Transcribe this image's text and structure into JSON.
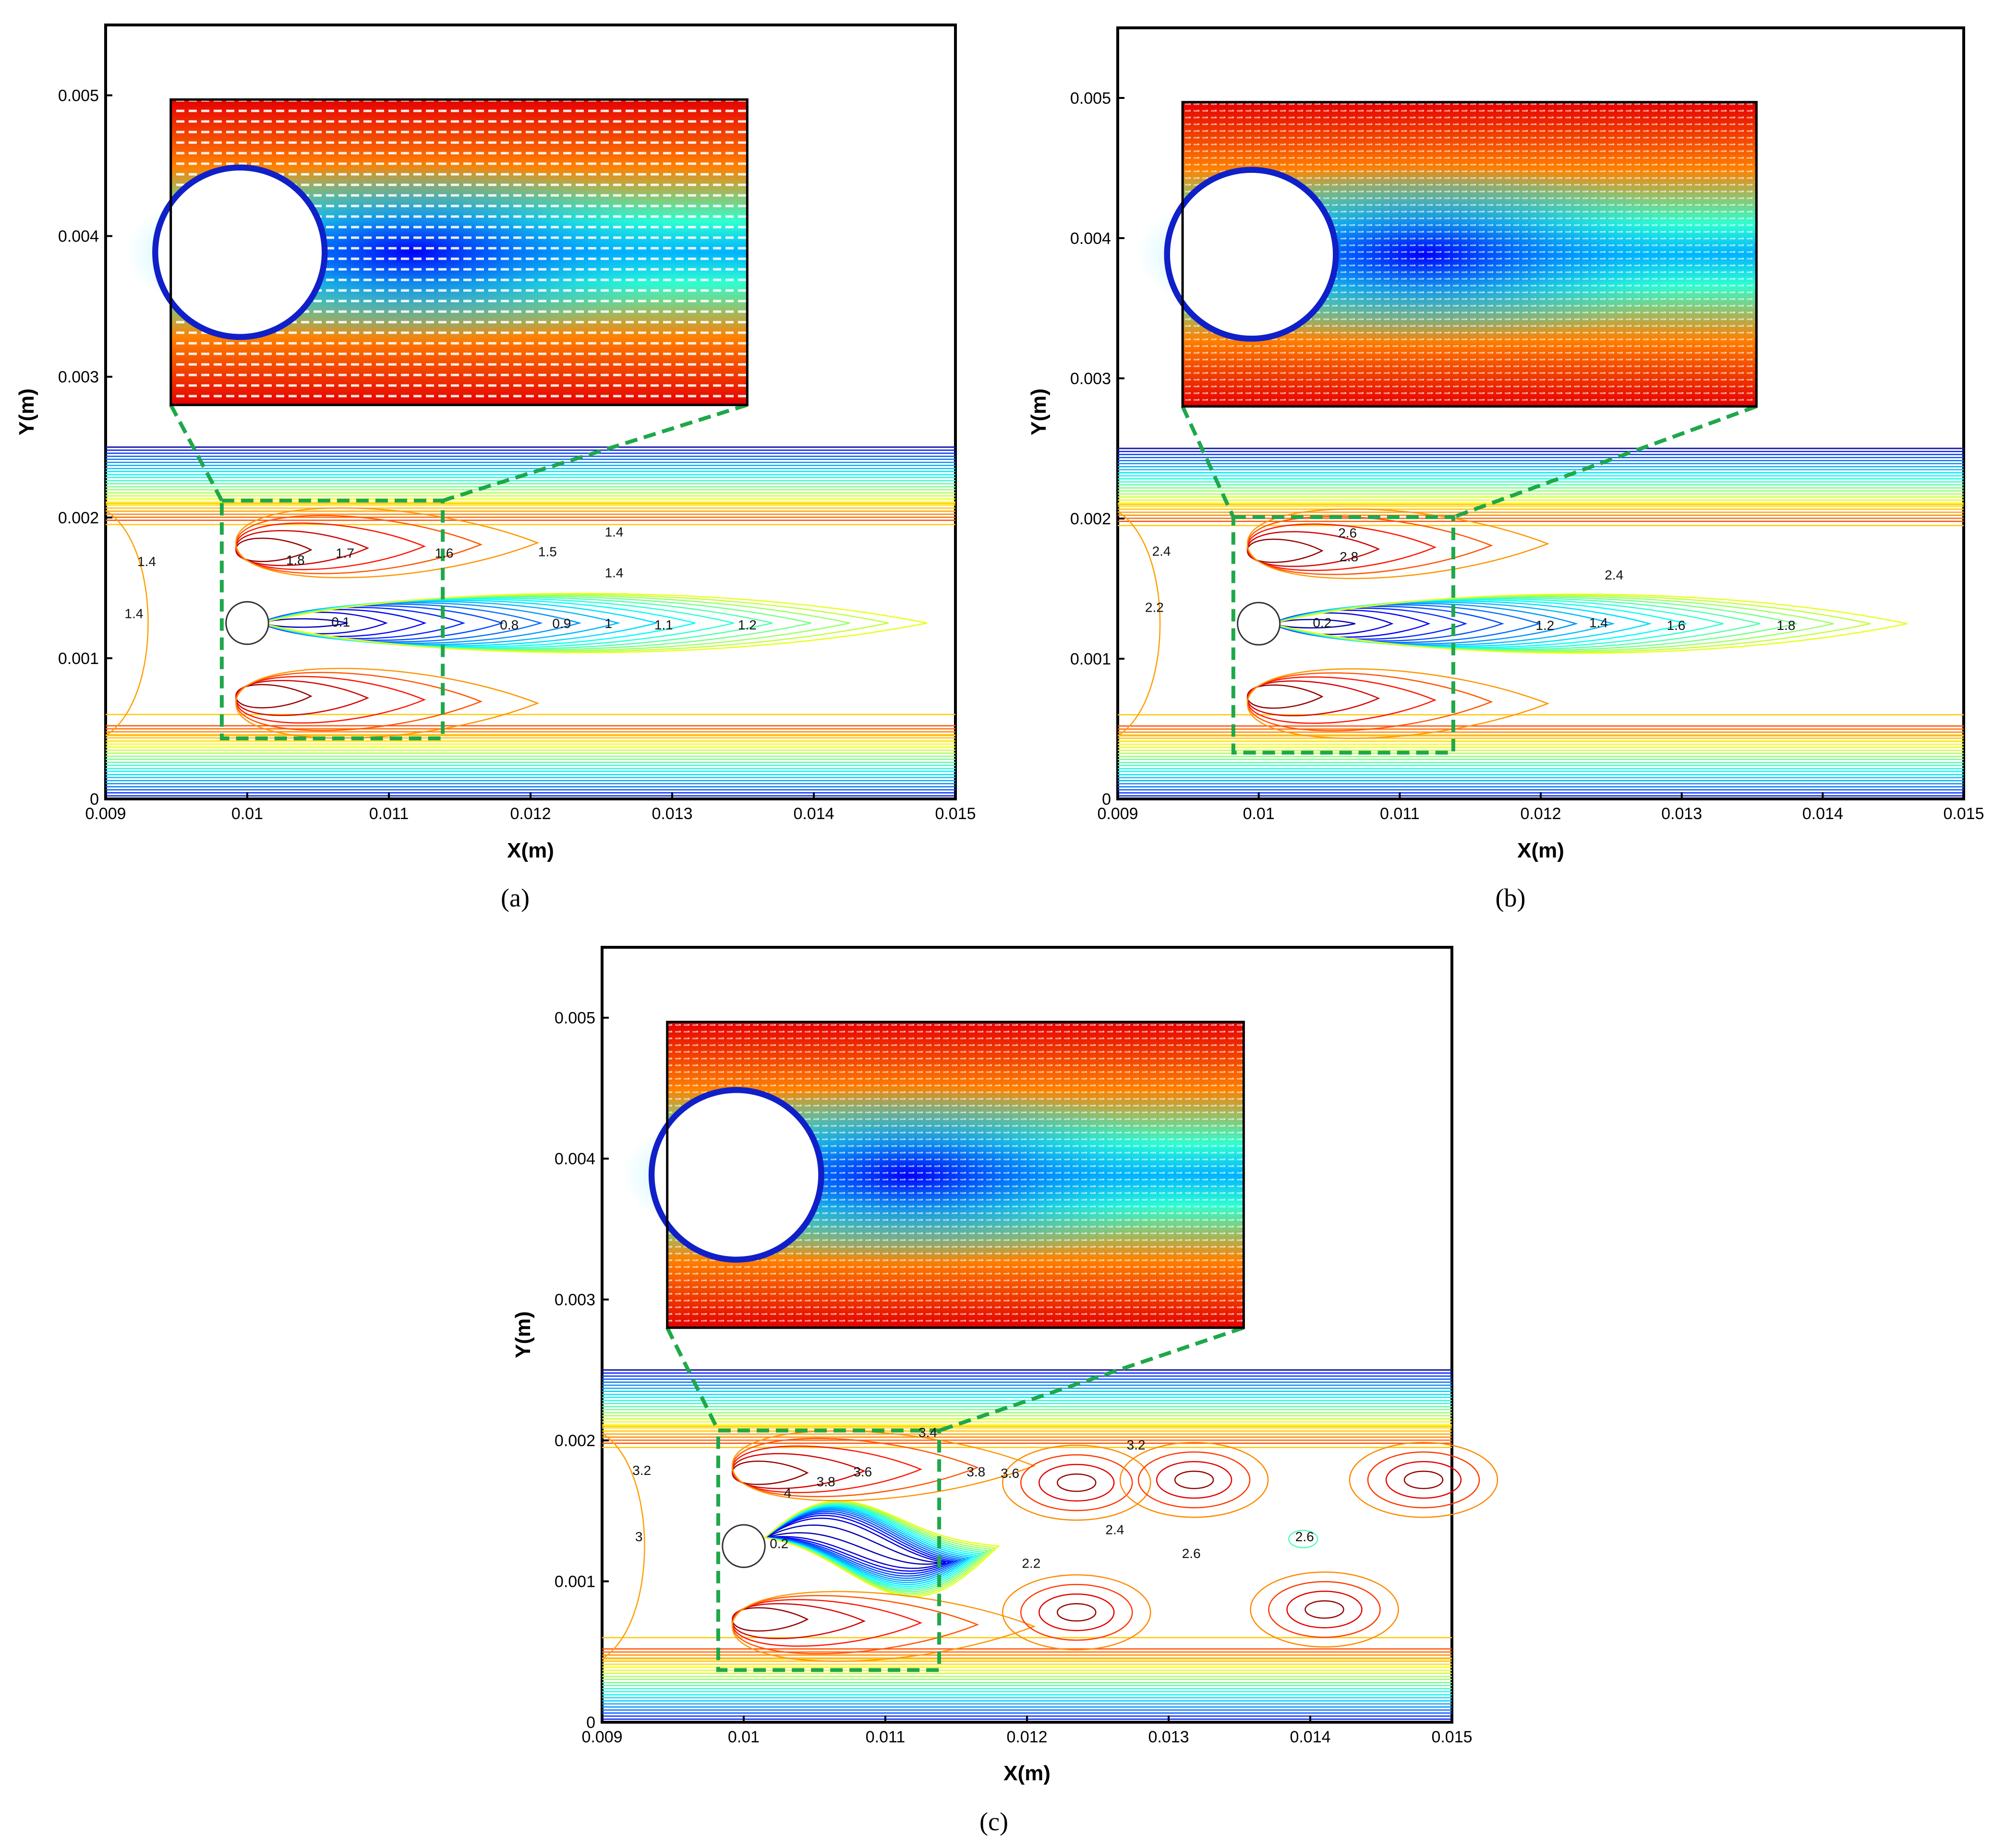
{
  "chart_data": [
    {
      "panel": "(a)",
      "type": "contour",
      "xlabel": "X(m)",
      "ylabel": "Y(m)",
      "xlim": [
        0.009,
        0.015
      ],
      "ylim": [
        0,
        0.0055
      ],
      "xticks": [
        "0.009",
        "0.01",
        "0.011",
        "0.012",
        "0.013",
        "0.014",
        "0.015"
      ],
      "yticks": [
        "0",
        "0.001",
        "0.002",
        "0.003",
        "0.004",
        "0.005"
      ],
      "channel_top": 0.0025,
      "cylinder": {
        "x": 0.01,
        "y": 0.00125,
        "r": 0.00015
      },
      "zoom_box": {
        "x": [
          0.00982,
          0.01138
        ],
        "y": [
          0.00043,
          0.00212
        ]
      },
      "inset": {
        "x": [
          0.00946,
          0.01353
        ],
        "y": [
          0.0028,
          0.00497
        ],
        "style": "vector-field"
      },
      "contour_labels": [
        {
          "text": "1.4",
          "x": 0.00929,
          "y": 0.00168
        },
        {
          "text": "1.4",
          "x": 0.0092,
          "y": 0.00131
        },
        {
          "text": "1.8",
          "x": 0.01034,
          "y": 0.00169
        },
        {
          "text": "1.7",
          "x": 0.01069,
          "y": 0.00174
        },
        {
          "text": "1.6",
          "x": 0.01139,
          "y": 0.00174
        },
        {
          "text": "1.4",
          "x": 0.01259,
          "y": 0.00189
        },
        {
          "text": "1.5",
          "x": 0.01212,
          "y": 0.00175
        },
        {
          "text": "1.4",
          "x": 0.01259,
          "y": 0.0016
        },
        {
          "text": "0.1",
          "x": 0.01066,
          "y": 0.00125
        },
        {
          "text": "0.8",
          "x": 0.01185,
          "y": 0.00123
        },
        {
          "text": "0.9",
          "x": 0.01222,
          "y": 0.00124
        },
        {
          "text": "1",
          "x": 0.01255,
          "y": 0.00124
        },
        {
          "text": "1.1",
          "x": 0.01294,
          "y": 0.00123
        },
        {
          "text": "1.2",
          "x": 0.01353,
          "y": 0.00123
        }
      ],
      "field": {
        "wake_length": 0.0048,
        "wake_min": 0.1,
        "outer": 1.4
      }
    },
    {
      "panel": "(b)",
      "type": "contour",
      "xlabel": "X(m)",
      "ylabel": "Y(m)",
      "xlim": [
        0.009,
        0.015
      ],
      "ylim": [
        0,
        0.0055
      ],
      "xticks": [
        "0.009",
        "0.01",
        "0.011",
        "0.012",
        "0.013",
        "0.014",
        "0.015"
      ],
      "yticks": [
        "0",
        "0.001",
        "0.002",
        "0.003",
        "0.004",
        "0.005"
      ],
      "channel_top": 0.0025,
      "cylinder": {
        "x": 0.01,
        "y": 0.00125,
        "r": 0.00015
      },
      "zoom_box": {
        "x": [
          0.00982,
          0.01138
        ],
        "y": [
          0.00033,
          0.00201
        ]
      },
      "inset": {
        "x": [
          0.00946,
          0.01353
        ],
        "y": [
          0.0028,
          0.00497
        ],
        "style": "vector-field"
      },
      "contour_labels": [
        {
          "text": "2.4",
          "x": 0.00931,
          "y": 0.00176
        },
        {
          "text": "2.2",
          "x": 0.00926,
          "y": 0.00136
        },
        {
          "text": "2.6",
          "x": 0.01063,
          "y": 0.00189
        },
        {
          "text": "2.8",
          "x": 0.01064,
          "y": 0.00172
        },
        {
          "text": "2.4",
          "x": 0.01252,
          "y": 0.00159
        },
        {
          "text": "0.2",
          "x": 0.01045,
          "y": 0.00125
        },
        {
          "text": "1.2",
          "x": 0.01203,
          "y": 0.00123
        },
        {
          "text": "1.4",
          "x": 0.01241,
          "y": 0.00125
        },
        {
          "text": "1.6",
          "x": 0.01296,
          "y": 0.00123
        },
        {
          "text": "1.8",
          "x": 0.01374,
          "y": 0.00123
        }
      ],
      "field": {
        "wake_length": 0.0046,
        "wake_min": 0.2,
        "outer": 2.4
      }
    },
    {
      "panel": "(c)",
      "type": "contour",
      "xlabel": "X(m)",
      "ylabel": "Y(m)",
      "xlim": [
        0.009,
        0.015
      ],
      "ylim": [
        0,
        0.0055
      ],
      "xticks": [
        "0.009",
        "0.01",
        "0.011",
        "0.012",
        "0.013",
        "0.014",
        "0.015"
      ],
      "yticks": [
        "0",
        "0.001",
        "0.002",
        "0.003",
        "0.004",
        "0.005"
      ],
      "channel_top": 0.0025,
      "cylinder": {
        "x": 0.01,
        "y": 0.00125,
        "r": 0.00015
      },
      "zoom_box": {
        "x": [
          0.00982,
          0.01138
        ],
        "y": [
          0.00037,
          0.00207
        ]
      },
      "inset": {
        "x": [
          0.00946,
          0.01353
        ],
        "y": [
          0.0028,
          0.00497
        ],
        "style": "vector-field"
      },
      "contour_labels": [
        {
          "text": "3.2",
          "x": 0.00928,
          "y": 0.00178
        },
        {
          "text": "3",
          "x": 0.00926,
          "y": 0.00131
        },
        {
          "text": "4",
          "x": 0.01031,
          "y": 0.00162
        },
        {
          "text": "3.8",
          "x": 0.01058,
          "y": 0.0017
        },
        {
          "text": "3.6",
          "x": 0.01084,
          "y": 0.00177
        },
        {
          "text": "3.4",
          "x": 0.0113,
          "y": 0.00205
        },
        {
          "text": "3.8",
          "x": 0.01164,
          "y": 0.00177
        },
        {
          "text": "3.6",
          "x": 0.01188,
          "y": 0.00176
        },
        {
          "text": "3.2",
          "x": 0.01277,
          "y": 0.00196
        },
        {
          "text": "0.2",
          "x": 0.01025,
          "y": 0.00126
        },
        {
          "text": "2.2",
          "x": 0.01203,
          "y": 0.00112
        },
        {
          "text": "2.4",
          "x": 0.01262,
          "y": 0.00136
        },
        {
          "text": "2.6",
          "x": 0.01316,
          "y": 0.00119
        },
        {
          "text": "2.6",
          "x": 0.01396,
          "y": 0.00131
        }
      ],
      "field": {
        "wake_length": 0.0024,
        "wake_min": 0.2,
        "outer": 3.2,
        "vortex_street": true
      }
    }
  ]
}
